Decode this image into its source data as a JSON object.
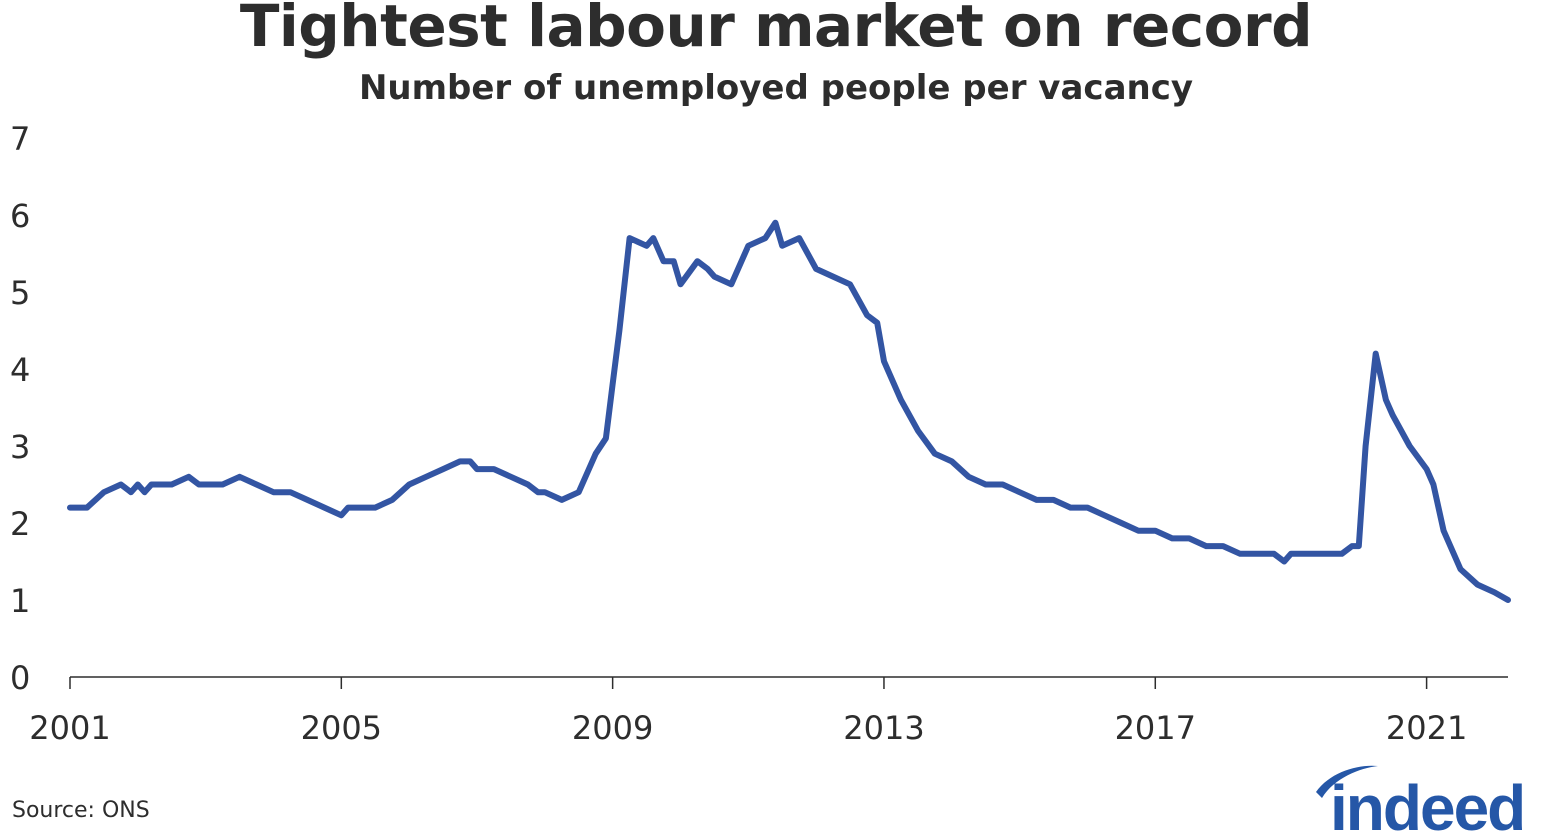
{
  "title": "Tightest labour market on record",
  "subtitle": "Number of unemployed people per vacancy",
  "source": "Source: ONS",
  "logo_text": "indeed",
  "colors": {
    "line": "#3355a3",
    "text": "#2d2d2d",
    "axis": "#2d2d2d",
    "logo": "#2557a7"
  },
  "chart_data": {
    "type": "line",
    "title": "Tightest labour market on record",
    "subtitle": "Number of unemployed people per vacancy",
    "xlabel": "",
    "ylabel": "",
    "xlim": [
      2001.0,
      2022.2
    ],
    "ylim": [
      0,
      7
    ],
    "yticks": [
      "0",
      "1",
      "2",
      "3",
      "4",
      "5",
      "6",
      "7"
    ],
    "xticks": [
      "2001",
      "2005",
      "2009",
      "2013",
      "2017",
      "2021"
    ],
    "grid": false,
    "x": [
      2001.0,
      2001.25,
      2001.5,
      2001.75,
      2001.9,
      2002.0,
      2002.1,
      2002.2,
      2002.3,
      2002.5,
      2002.75,
      2002.9,
      2003.0,
      2003.25,
      2003.5,
      2003.75,
      2004.0,
      2004.25,
      2004.5,
      2004.75,
      2005.0,
      2005.1,
      2005.25,
      2005.4,
      2005.5,
      2005.75,
      2006.0,
      2006.25,
      2006.5,
      2006.75,
      2006.9,
      2007.0,
      2007.25,
      2007.5,
      2007.75,
      2007.9,
      2008.0,
      2008.25,
      2008.5,
      2008.6,
      2008.75,
      2008.9,
      2009.0,
      2009.1,
      2009.25,
      2009.5,
      2009.6,
      2009.75,
      2009.9,
      2010.0,
      2010.25,
      2010.4,
      2010.5,
      2010.75,
      2011.0,
      2011.25,
      2011.4,
      2011.5,
      2011.75,
      2012.0,
      2012.25,
      2012.5,
      2012.75,
      2012.9,
      2013.0,
      2013.25,
      2013.5,
      2013.75,
      2014.0,
      2014.25,
      2014.5,
      2014.75,
      2015.0,
      2015.25,
      2015.5,
      2015.75,
      2016.0,
      2016.25,
      2016.5,
      2016.75,
      2017.0,
      2017.25,
      2017.5,
      2017.75,
      2018.0,
      2018.25,
      2018.5,
      2018.75,
      2018.9,
      2019.0,
      2019.25,
      2019.5,
      2019.75,
      2019.9,
      2020.0,
      2020.1,
      2020.25,
      2020.4,
      2020.5,
      2020.75,
      2021.0,
      2021.1,
      2021.25,
      2021.5,
      2021.75,
      2022.0,
      2022.2
    ],
    "series": [
      {
        "values": [
          2.2,
          2.2,
          2.4,
          2.5,
          2.4,
          2.5,
          2.4,
          2.5,
          2.5,
          2.5,
          2.6,
          2.5,
          2.5,
          2.5,
          2.6,
          2.5,
          2.4,
          2.4,
          2.3,
          2.2,
          2.1,
          2.2,
          2.2,
          2.2,
          2.2,
          2.3,
          2.5,
          2.6,
          2.7,
          2.8,
          2.8,
          2.7,
          2.7,
          2.6,
          2.5,
          2.4,
          2.4,
          2.3,
          2.4,
          2.6,
          2.9,
          3.1,
          3.8,
          4.5,
          5.7,
          5.6,
          5.7,
          5.4,
          5.4,
          5.1,
          5.4,
          5.3,
          5.2,
          5.1,
          5.6,
          5.7,
          5.9,
          5.6,
          5.7,
          5.3,
          5.2,
          5.1,
          4.7,
          4.6,
          4.1,
          3.6,
          3.2,
          2.9,
          2.8,
          2.6,
          2.5,
          2.5,
          2.4,
          2.3,
          2.3,
          2.2,
          2.2,
          2.1,
          2.0,
          1.9,
          1.9,
          1.8,
          1.8,
          1.7,
          1.7,
          1.6,
          1.6,
          1.6,
          1.5,
          1.6,
          1.6,
          1.6,
          1.6,
          1.7,
          1.7,
          3.0,
          4.2,
          3.6,
          3.4,
          3.0,
          2.7,
          2.5,
          1.9,
          1.4,
          1.2,
          1.1,
          1.0
        ]
      }
    ]
  }
}
